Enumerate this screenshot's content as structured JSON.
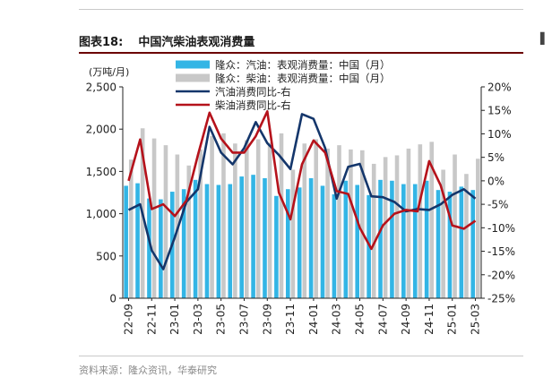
{
  "figure": {
    "label": "图表18:",
    "title": "中国汽柴油表观消费量"
  },
  "source": "资料来源：隆众资讯，华泰研究",
  "colors": {
    "gasoline_bar": "#33b5e5",
    "diesel_bar": "#c8c8c8",
    "gasoline_line": "#14366b",
    "diesel_line": "#b5121b",
    "header_rule": "#6b0000"
  },
  "chart_data": {
    "type": "bar",
    "ylabel": "(万吨/月)",
    "ylim": [
      0,
      2500
    ],
    "yticks": [
      "0",
      "500",
      "1,000",
      "1,500",
      "2,000",
      "2,500"
    ],
    "y2lim": [
      -25,
      20
    ],
    "y2ticks": [
      "-25%",
      "-20%",
      "-15%",
      "-10%",
      "-5%",
      "0%",
      "5%",
      "10%",
      "15%",
      "20%"
    ],
    "grid": false,
    "legend_position": "top-left",
    "categories": [
      "22-09",
      "22-10",
      "22-11",
      "22-12",
      "23-01",
      "23-02",
      "23-03",
      "23-04",
      "23-05",
      "23-06",
      "23-07",
      "23-08",
      "23-09",
      "23-10",
      "23-11",
      "23-12",
      "24-01",
      "24-02",
      "24-03",
      "24-04",
      "24-05",
      "24-06",
      "24-07",
      "24-08",
      "24-09",
      "24-10",
      "24-11",
      "24-12",
      "25-01",
      "25-02",
      "25-03"
    ],
    "x_tick_labels": [
      "22-09",
      "22-11",
      "23-01",
      "23-03",
      "23-05",
      "23-07",
      "23-09",
      "23-11",
      "24-01",
      "24-03",
      "24-05",
      "24-07",
      "24-09",
      "24-11",
      "25-01",
      "25-03"
    ],
    "series": [
      {
        "name": "隆众：汽油：表观消费量：中国（月）",
        "type": "bar",
        "axis": "left",
        "values": [
          1330,
          1360,
          1180,
          1170,
          1260,
          1290,
          1400,
          1350,
          1340,
          1350,
          1440,
          1460,
          1420,
          1210,
          1290,
          1310,
          1420,
          1330,
          1230,
          1390,
          1340,
          1220,
          1400,
          1390,
          1350,
          1350,
          1390,
          1280,
          1260,
          1320,
          1280
        ]
      },
      {
        "name": "隆众：柴油：表观消费量：中国（月）",
        "type": "bar",
        "axis": "left",
        "values": [
          1640,
          2010,
          1890,
          1810,
          1700,
          1570,
          1760,
          1920,
          1950,
          1830,
          1870,
          1880,
          1840,
          1950,
          1520,
          1830,
          1880,
          1770,
          1810,
          1760,
          1750,
          1590,
          1670,
          1690,
          1770,
          1820,
          1850,
          1520,
          1700,
          1470,
          1650
        ]
      },
      {
        "name": "汽油消费同比-右",
        "type": "line",
        "axis": "right",
        "values": [
          -6.2,
          -5.0,
          -14.8,
          -18.8,
          -12.0,
          -4.5,
          -1.8,
          11.5,
          6.0,
          3.5,
          7.0,
          12.5,
          8.0,
          5.5,
          2.5,
          14.2,
          13.2,
          7.0,
          -3.8,
          3.0,
          3.6,
          -3.3,
          -3.5,
          -4.5,
          -6.5,
          -6.0,
          -6.2,
          -5.0,
          -3.0,
          -1.8,
          -3.8
        ]
      },
      {
        "name": "柴油消费同比-右",
        "type": "line",
        "axis": "right",
        "values": [
          0.0,
          8.8,
          -6.0,
          -5.0,
          -7.5,
          -4.2,
          5.5,
          14.5,
          9.0,
          6.0,
          6.0,
          9.5,
          14.8,
          -2.5,
          -8.2,
          3.5,
          8.6,
          6.0,
          -2.2,
          -2.8,
          -10.0,
          -14.5,
          -9.5,
          -7.0,
          -6.2,
          -6.5,
          4.2,
          -1.0,
          -9.5,
          -10.2,
          -8.5
        ]
      }
    ]
  }
}
